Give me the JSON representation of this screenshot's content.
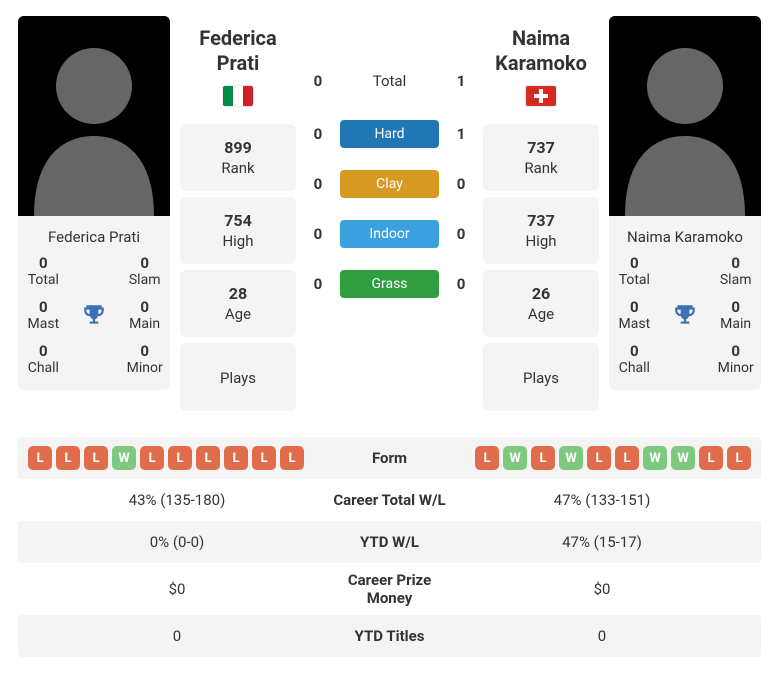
{
  "playerA": {
    "name": "Federica Prati",
    "flag": "it",
    "titles": {
      "total": {
        "val": "0",
        "lbl": "Total"
      },
      "slam": {
        "val": "0",
        "lbl": "Slam"
      },
      "mast": {
        "val": "0",
        "lbl": "Mast"
      },
      "main": {
        "val": "0",
        "lbl": "Main"
      },
      "chall": {
        "val": "0",
        "lbl": "Chall"
      },
      "minor": {
        "val": "0",
        "lbl": "Minor"
      }
    },
    "stats": {
      "rank": {
        "val": "899",
        "lbl": "Rank"
      },
      "high": {
        "val": "754",
        "lbl": "High"
      },
      "age": {
        "val": "28",
        "lbl": "Age"
      },
      "plays": {
        "val": "",
        "lbl": "Plays"
      }
    },
    "form": [
      "L",
      "L",
      "L",
      "W",
      "L",
      "L",
      "L",
      "L",
      "L",
      "L"
    ],
    "careerWL": "43% (135-180)",
    "ytdWL": "0% (0-0)",
    "prize": "$0",
    "ytdTitles": "0"
  },
  "playerB": {
    "name": "Naima Karamoko",
    "flag": "ch",
    "titles": {
      "total": {
        "val": "0",
        "lbl": "Total"
      },
      "slam": {
        "val": "0",
        "lbl": "Slam"
      },
      "mast": {
        "val": "0",
        "lbl": "Mast"
      },
      "main": {
        "val": "0",
        "lbl": "Main"
      },
      "chall": {
        "val": "0",
        "lbl": "Chall"
      },
      "minor": {
        "val": "0",
        "lbl": "Minor"
      }
    },
    "stats": {
      "rank": {
        "val": "737",
        "lbl": "Rank"
      },
      "high": {
        "val": "737",
        "lbl": "High"
      },
      "age": {
        "val": "26",
        "lbl": "Age"
      },
      "plays": {
        "val": "",
        "lbl": "Plays"
      }
    },
    "form": [
      "L",
      "W",
      "L",
      "W",
      "L",
      "L",
      "W",
      "W",
      "L",
      "L"
    ],
    "careerWL": "47% (133-151)",
    "ytdWL": "47% (15-17)",
    "prize": "$0",
    "ytdTitles": "0"
  },
  "h2h": {
    "total": {
      "a": "0",
      "label": "Total",
      "b": "1"
    },
    "hard": {
      "a": "0",
      "label": "Hard",
      "b": "1",
      "color": "#1f78b4"
    },
    "clay": {
      "a": "0",
      "label": "Clay",
      "b": "0",
      "color": "#d69a22"
    },
    "indoor": {
      "a": "0",
      "label": "Indoor",
      "b": "0",
      "color": "#3aa0df"
    },
    "grass": {
      "a": "0",
      "label": "Grass",
      "b": "0",
      "color": "#2e9e3f"
    }
  },
  "labels": {
    "form": "Form",
    "careerWL": "Career Total W/L",
    "ytdWL": "YTD W/L",
    "prize": "Career Prize Money",
    "ytdTitles": "YTD Titles"
  },
  "colors": {
    "chipW": "#7fc97f",
    "chipL": "#e06c4c",
    "panel": "#f4f4f4",
    "trophy": "#3b6fb6"
  }
}
